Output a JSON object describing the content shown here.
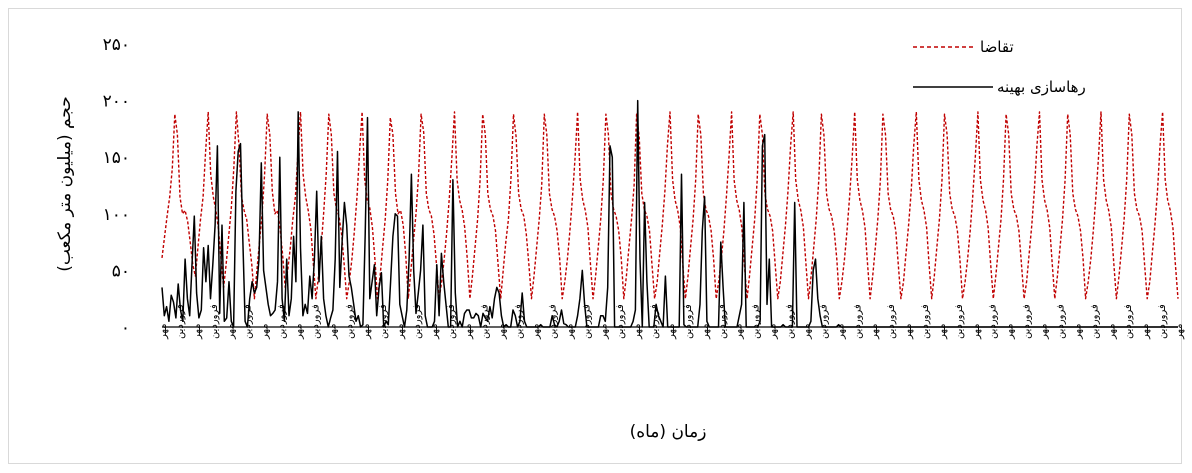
{
  "chart_data": {
    "type": "line",
    "title": "",
    "xlabel": "زمان (ماه)",
    "ylabel": "حجم (میلیون متر مکعب)",
    "ylim": [
      0,
      250
    ],
    "yticks": [
      0,
      50,
      100,
      150,
      200,
      250
    ],
    "ytick_labels": [
      "۰",
      "۵۰",
      "۱۰۰",
      "۱۵۰",
      "۲۰۰",
      "۲۵۰"
    ],
    "grid": false,
    "legend_position": "top-right",
    "x_tick_labels": [
      "مهر",
      "فروردین",
      "مهر",
      "فروردین",
      "مهر",
      "فروردین",
      "مهر",
      "فروردین",
      "مهر",
      "فروردین",
      "مهر",
      "فروردین",
      "مهر",
      "فروردین",
      "مهر",
      "فروردین",
      "مهر",
      "فروردین",
      "مهر",
      "فروردین",
      "مهر",
      "فروردین",
      "مهر",
      "فروردین",
      "مهر",
      "فروردین",
      "مهر",
      "فروردین",
      "مهر",
      "فروردین",
      "مهر",
      "فروردین",
      "مهر",
      "فروردین",
      "مهر",
      "فروردین",
      "مهر",
      "فروردین",
      "مهر",
      "فروردین",
      "مهر",
      "فروردین",
      "مهر",
      "فروردین",
      "مهر",
      "فروردین",
      "مهر",
      "فروردین",
      "مهر",
      "فروردین",
      "مهر",
      "فروردین",
      "مهر",
      "فروردین",
      "مهر",
      "فروردین",
      "مهر",
      "فروردین",
      "مهر",
      "فروردین",
      "مهر"
    ],
    "series": [
      {
        "name": "تقاضا",
        "color": "#c00000",
        "style": "dashed",
        "values": [
          61,
          80,
          98,
          115,
          140,
          188,
          170,
          115,
          100,
          103,
          93,
          75,
          55,
          45,
          70,
          95,
          115,
          155,
          190,
          135,
          115,
          103,
          87,
          60,
          35,
          55,
          80,
          105,
          140,
          190,
          160,
          115,
          103,
          95,
          75,
          55,
          25,
          50,
          75,
          100,
          135,
          188,
          170,
          120,
          100,
          103,
          88,
          64,
          35,
          50,
          70,
          95,
          115,
          155,
          190,
          135,
          115,
          103,
          87,
          55,
          25,
          45,
          70,
          100,
          135,
          188,
          170,
          118,
          104,
          98,
          82,
          55,
          25,
          40,
          60,
          85,
          115,
          155,
          190,
          130,
          112,
          105,
          88,
          60,
          25,
          45,
          70,
          95,
          130,
          185,
          170,
          118,
          100,
          103,
          90,
          64,
          25,
          50,
          75,
          100,
          135,
          188,
          172,
          118,
          104,
          98,
          82,
          55,
          25,
          40,
          60,
          85,
          115,
          150,
          190,
          130,
          112,
          103,
          88,
          60,
          25,
          45,
          70,
          95,
          130,
          188,
          170,
          118,
          104,
          98,
          85,
          55,
          25,
          50,
          75,
          95,
          130,
          188,
          168,
          118,
          104,
          98,
          82,
          55,
          25,
          45,
          70,
          95,
          125,
          188,
          170,
          118,
          104,
          98,
          85,
          60,
          25,
          40,
          60,
          85,
          115,
          150,
          190,
          130,
          112,
          103,
          88,
          55,
          25,
          45,
          70,
          95,
          130,
          188,
          170,
          118,
          104,
          98,
          85,
          60,
          25,
          45,
          70,
          95,
          125,
          188,
          168,
          118,
          104,
          98,
          85,
          55,
          25,
          40,
          65,
          90,
          120,
          160,
          190,
          130,
          112,
          103,
          88,
          55,
          25,
          45,
          70,
          95,
          130,
          188,
          170,
          118,
          104,
          98,
          85,
          60,
          25,
          40,
          60,
          85,
          115,
          150,
          190,
          130,
          112,
          103,
          88,
          55,
          25,
          45,
          70,
          95,
          130,
          188,
          170,
          118,
          104,
          98,
          85,
          55,
          25,
          40,
          65,
          90,
          120,
          160,
          190,
          130,
          112,
          103,
          88,
          55,
          25,
          45,
          70,
          95,
          130,
          188,
          170,
          118,
          104,
          98,
          85,
          60,
          25,
          40,
          60,
          85,
          115,
          150,
          190,
          130,
          112,
          103,
          88,
          55,
          25,
          45,
          70,
          95,
          130,
          188,
          170,
          118,
          104,
          98,
          85,
          55,
          25,
          40,
          65,
          90,
          120,
          160,
          190,
          130,
          112,
          103,
          88,
          55,
          25,
          45,
          70,
          95,
          130,
          188,
          170,
          118,
          104,
          98,
          85,
          60,
          25,
          40,
          60,
          85,
          115,
          150,
          190,
          130,
          112,
          103,
          88,
          55,
          25,
          45,
          70,
          95,
          130,
          188,
          170,
          118,
          104,
          98,
          85,
          55,
          25,
          40,
          65,
          90,
          120,
          160,
          190,
          130,
          112,
          103,
          88,
          55,
          25,
          45,
          70,
          95,
          130,
          188,
          170,
          118,
          104,
          98,
          85,
          60,
          25,
          40,
          60,
          85,
          115,
          150,
          190,
          130,
          112,
          103,
          88,
          55,
          25,
          45,
          70,
          95,
          130,
          188,
          170,
          118,
          104,
          98,
          85,
          55,
          25,
          40,
          65,
          90,
          120,
          160,
          190,
          130,
          112,
          103,
          88,
          55,
          25
        ]
      },
      {
        "name": "رهاسازی بهینه",
        "color": "#000000",
        "style": "solid",
        "values": [
          35,
          10,
          18,
          5,
          28,
          22,
          8,
          38,
          15,
          5,
          60,
          25,
          10,
          55,
          98,
          30,
          8,
          15,
          70,
          40,
          72,
          25,
          55,
          90,
          160,
          12,
          90,
          5,
          8,
          40,
          5,
          0,
          120,
          155,
          162,
          78,
          5,
          0,
          25,
          40,
          30,
          35,
          60,
          145,
          50,
          35,
          20,
          10,
          12,
          15,
          40,
          150,
          25,
          5,
          60,
          10,
          25,
          80,
          40,
          190,
          70,
          10,
          20,
          12,
          45,
          25,
          60,
          120,
          40,
          80,
          25,
          10,
          0,
          8,
          15,
          60,
          155,
          35,
          75,
          110,
          90,
          45,
          35,
          20,
          5,
          10,
          0,
          2,
          82,
          185,
          25,
          40,
          55,
          10,
          35,
          48,
          0,
          5,
          2,
          40,
          80,
          100,
          98,
          20,
          10,
          0,
          15,
          60,
          135,
          50,
          12,
          30,
          50,
          90,
          10,
          0,
          0,
          0,
          5,
          55,
          10,
          65,
          40,
          20,
          0,
          0,
          130,
          30,
          0,
          5,
          0,
          12,
          15,
          15,
          8,
          8,
          12,
          10,
          0,
          12,
          8,
          5,
          18,
          8,
          25,
          35,
          30,
          10,
          0,
          2,
          0,
          0,
          15,
          10,
          0,
          5,
          30,
          5,
          0,
          0,
          0,
          0,
          0,
          0,
          2,
          0,
          0,
          0,
          0,
          10,
          2,
          0,
          5,
          15,
          3,
          2,
          0,
          0,
          0,
          0,
          10,
          25,
          50,
          20,
          0,
          0,
          0,
          0,
          0,
          0,
          10,
          10,
          5,
          35,
          160,
          150,
          0,
          0,
          0,
          0,
          0,
          0,
          0,
          0,
          5,
          15,
          200,
          60,
          0,
          110,
          40,
          0,
          0,
          0,
          20,
          10,
          5,
          0,
          45,
          0,
          0,
          0,
          0,
          0,
          0,
          135,
          2,
          0,
          0,
          0,
          0,
          0,
          0,
          20,
          85,
          115,
          5,
          0,
          0,
          0,
          0,
          0,
          75,
          35,
          0,
          0,
          0,
          0,
          0,
          0,
          10,
          20,
          110,
          0,
          0,
          0,
          0,
          0,
          0,
          5,
          160,
          170,
          20,
          60,
          0,
          0,
          0,
          0,
          0,
          2,
          0,
          0,
          0,
          0,
          110,
          0,
          0,
          0,
          0,
          0,
          0,
          5,
          50,
          60,
          25,
          10,
          0,
          0,
          0,
          0,
          0,
          0,
          0,
          2,
          0,
          0,
          0,
          0,
          0,
          0,
          0,
          0,
          0,
          0,
          0,
          0,
          0,
          0,
          0,
          0,
          0,
          0,
          0,
          0,
          0,
          0,
          0,
          0,
          0,
          0,
          0,
          0,
          0,
          0,
          0,
          0,
          0,
          0,
          0,
          0,
          0,
          0,
          0,
          0,
          0,
          0,
          0,
          0,
          0,
          0,
          0,
          0,
          0,
          0,
          0,
          0,
          0,
          0,
          0,
          0,
          0,
          0,
          0,
          0,
          0,
          0,
          0,
          0,
          0,
          0,
          0,
          0,
          0,
          0,
          0,
          0,
          0,
          0,
          0,
          0,
          0,
          0,
          0,
          0,
          0,
          0,
          0,
          0,
          0,
          0,
          0,
          0,
          0,
          0,
          0,
          0,
          0,
          0,
          0,
          0,
          0,
          0,
          0,
          0,
          0,
          0,
          0,
          0,
          0,
          0,
          0,
          0,
          0,
          0,
          0,
          0,
          0,
          0,
          0,
          0,
          0,
          0,
          0,
          0,
          0,
          0,
          0,
          0,
          0,
          0,
          0,
          0,
          0,
          0,
          0,
          0,
          0,
          0,
          0,
          0,
          0,
          0,
          0,
          0,
          0,
          0,
          0,
          0,
          0,
          0,
          0
        ]
      }
    ]
  }
}
